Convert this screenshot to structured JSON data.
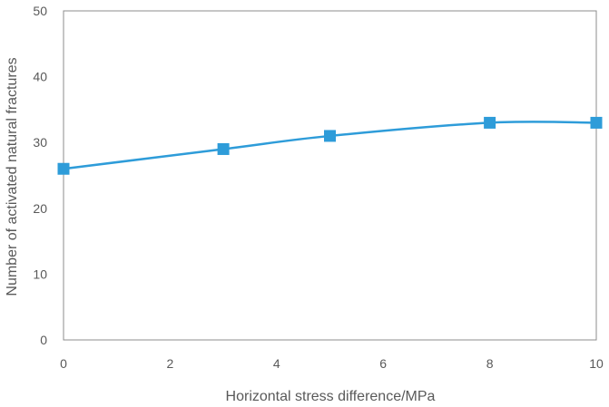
{
  "chart_data": {
    "type": "line",
    "title": "",
    "xlabel": "Horizontal stress difference/MPa",
    "ylabel": "Number of activated natural fractures",
    "xlim": [
      0,
      10
    ],
    "ylim": [
      0,
      50
    ],
    "x_ticks": [
      0,
      2,
      4,
      6,
      8,
      10
    ],
    "y_ticks": [
      0,
      10,
      20,
      30,
      40,
      50
    ],
    "grid": false,
    "smooth": true,
    "series": [
      {
        "color": "#2E9CD9",
        "marker": "square",
        "x": [
          0,
          3,
          5,
          8,
          10
        ],
        "y": [
          26,
          29,
          31,
          33,
          33
        ]
      }
    ]
  }
}
